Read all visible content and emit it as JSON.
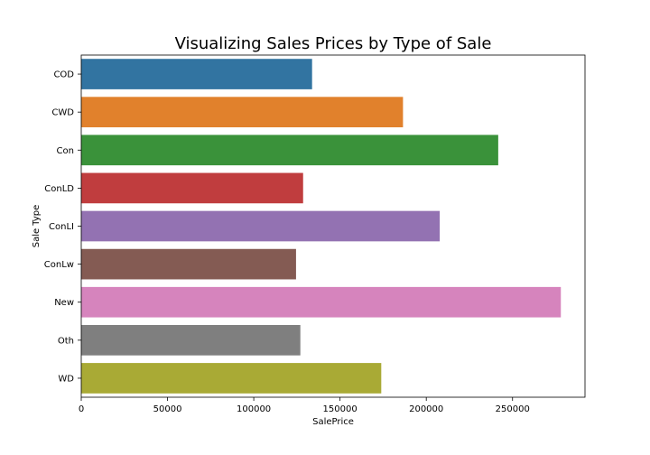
{
  "chart_data": {
    "type": "bar",
    "orientation": "horizontal",
    "title": "Visualizing Sales Prices by Type of Sale",
    "xlabel": "SalePrice",
    "ylabel": "Sale Type",
    "categories": [
      "COD",
      "CWD",
      "Con",
      "ConLD",
      "ConLI",
      "ConLw",
      "New",
      "Oth",
      "WD"
    ],
    "values": [
      133800,
      186500,
      241700,
      128600,
      207800,
      124500,
      278000,
      127000,
      173900
    ],
    "colors": [
      "#3274a1",
      "#e1812c",
      "#3a923a",
      "#c03d3e",
      "#9372b2",
      "#845b53",
      "#d684bd",
      "#7f7f7f",
      "#a9aa35"
    ],
    "xlim": [
      0,
      292000
    ],
    "xticks": [
      0,
      50000,
      100000,
      150000,
      200000,
      250000
    ],
    "xtick_labels": [
      "0",
      "50000",
      "100000",
      "150000",
      "200000",
      "250000"
    ],
    "grid": false,
    "legend": "none"
  }
}
